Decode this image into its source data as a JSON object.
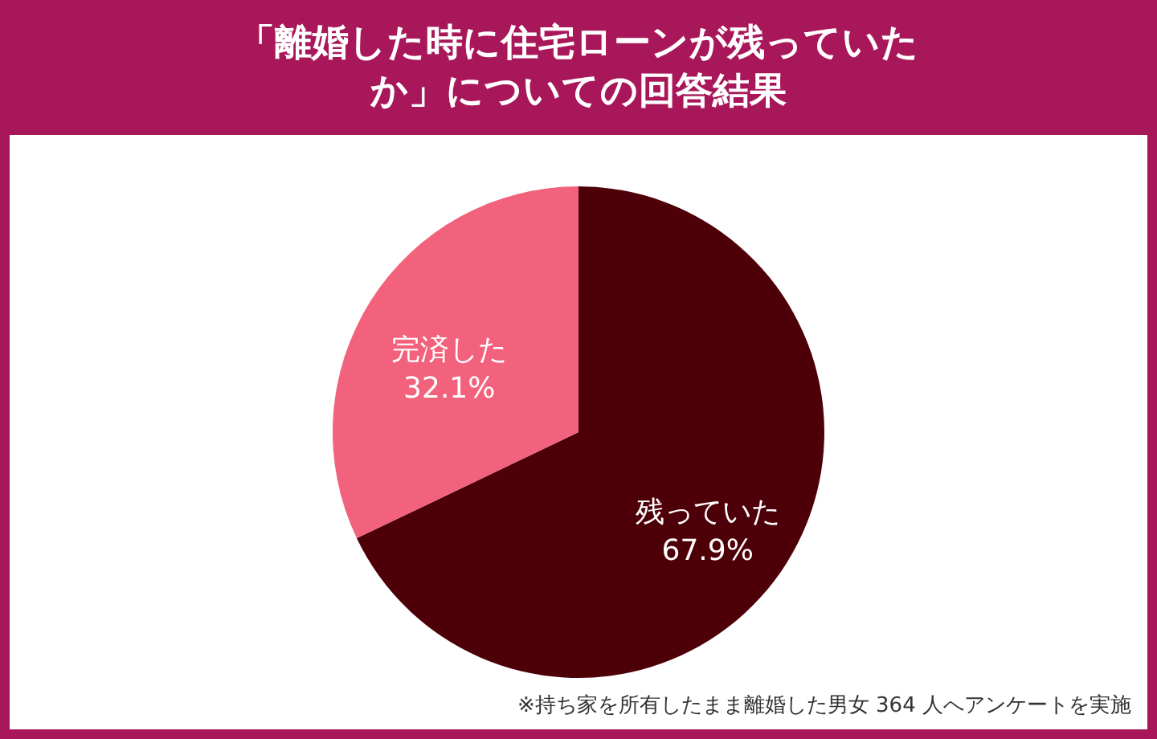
{
  "chart_data": {
    "type": "pie",
    "title": "「離婚した時に住宅ローンが残っていたか」についての回答結果",
    "categories": [
      "残っていた",
      "完済した"
    ],
    "values": [
      67.9,
      32.1
    ],
    "value_labels": [
      "67.9%",
      "32.1%"
    ],
    "colors": [
      "#4e0008",
      "#f2627c"
    ],
    "annotations": [
      "※持ち家を所有したまま離婚した男女 364 人へアンケートを実施"
    ]
  }
}
